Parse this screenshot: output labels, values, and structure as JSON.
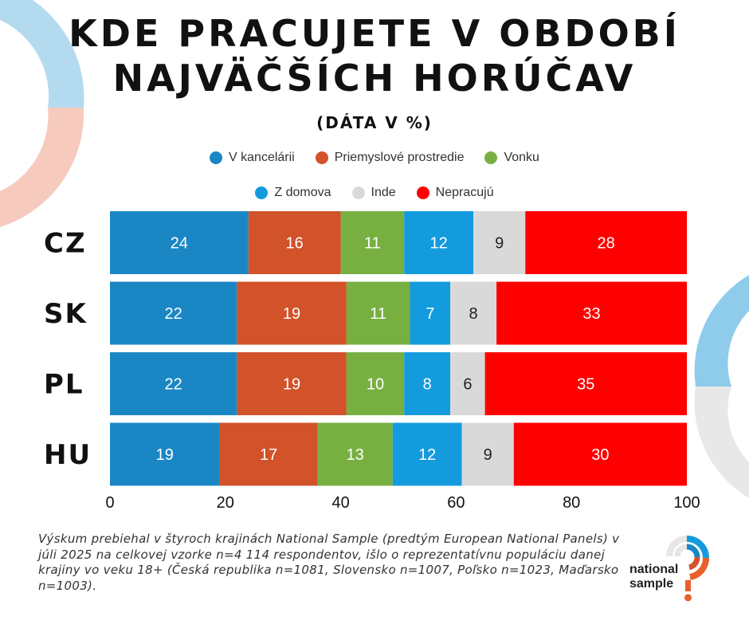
{
  "title_lines": [
    "KDE PRACUJETE V OBDOBÍ",
    "NAJVÄČŠÍCH HORÚČAV"
  ],
  "subtitle": "(DÁTA V %)",
  "legend_rows": [
    [
      {
        "label": "V kancelárii",
        "color": "#1A87C4"
      },
      {
        "label": "Priemyslové prostredie",
        "color": "#D2522A"
      },
      {
        "label": "Vonku",
        "color": "#77B041"
      }
    ],
    [
      {
        "label": "Z domova",
        "color": "#139BDD"
      },
      {
        "label": "Inde",
        "color": "#D9D9D9"
      },
      {
        "label": "Nepracujú",
        "color": "#FF0000"
      }
    ]
  ],
  "chart_data": {
    "type": "bar",
    "orientation": "horizontal",
    "stacked": true,
    "categories": [
      "CZ",
      "SK",
      "PL",
      "HU"
    ],
    "series": [
      {
        "name": "V kancelárii",
        "color": "#1A87C4",
        "label_color": "#ffffff",
        "values": [
          24,
          22,
          22,
          19
        ]
      },
      {
        "name": "Priemyslové prostredie",
        "color": "#D2522A",
        "label_color": "#ffffff",
        "values": [
          16,
          19,
          19,
          17
        ]
      },
      {
        "name": "Vonku",
        "color": "#77B041",
        "label_color": "#ffffff",
        "values": [
          11,
          11,
          10,
          13
        ]
      },
      {
        "name": "Z domova",
        "color": "#139BDD",
        "label_color": "#ffffff",
        "values": [
          12,
          7,
          8,
          12
        ]
      },
      {
        "name": "Inde",
        "color": "#D9D9D9",
        "label_color": "#222222",
        "values": [
          9,
          8,
          6,
          9
        ]
      },
      {
        "name": "Nepracujú",
        "color": "#FF0000",
        "label_color": "#ffffff",
        "values": [
          28,
          33,
          35,
          30
        ]
      }
    ],
    "xlim": [
      0,
      100
    ],
    "xticks": [
      "0",
      "20",
      "40",
      "60",
      "80",
      "100"
    ],
    "legend_position": "top",
    "grid": false
  },
  "footnote": "Výskum prebiehal v štyroch krajinách National Sample (predtým European National Panels) v júli 2025 na celkovej vzorke n=4 114 respondentov, išlo o reprezentatívnu populáciu danej krajiny vo veku 18+ (Česká republika n=1081, Slovensko n=1007, Poľsko n=1023, Maďarsko n=1003).",
  "logo": {
    "line1": "national",
    "line2": "sample"
  }
}
